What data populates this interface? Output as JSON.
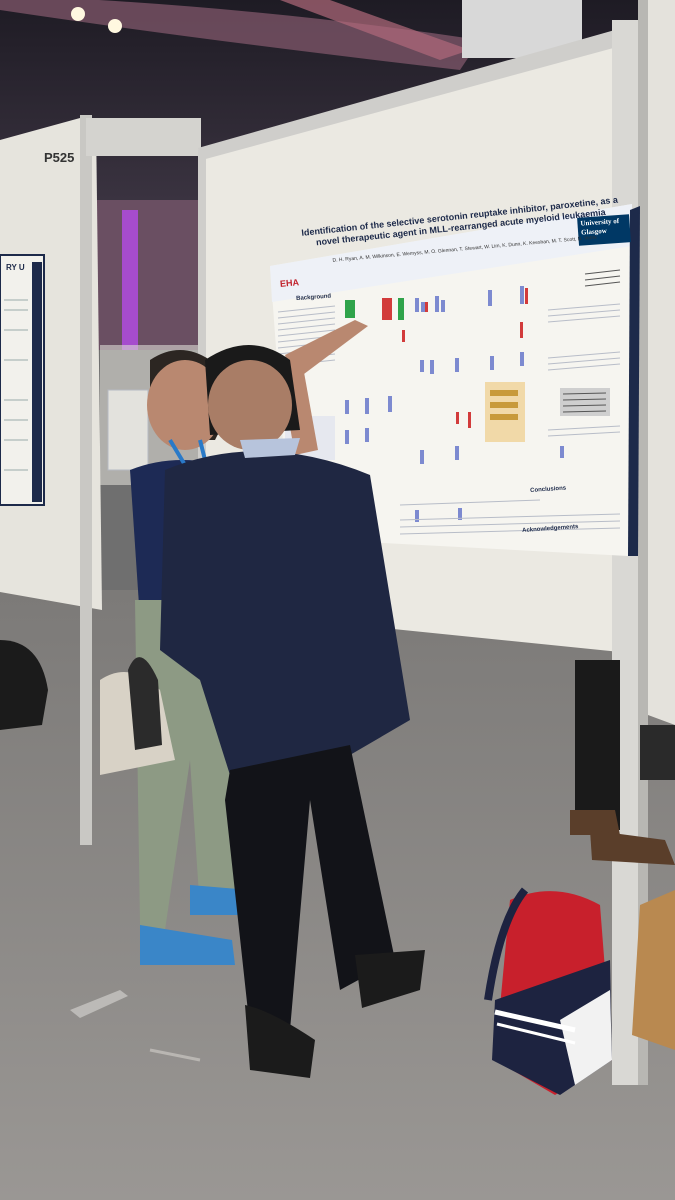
{
  "booth": {
    "number": "P525"
  },
  "poster": {
    "title": "Identification of the selective serotonin reuptake inhibitor, paroxetine, as a novel therapeutic agent in MLL-rearranged acute myeloid leukaemia",
    "authors": "D. H. Ryan, A. M. Wilkinson, E. Wemyss, M. O. Glennan, T. Stewart, W. Lim, K. Dunn, K. Keeshan, M. T. Scott, D. Vetrie",
    "institution_logo": "University of Glasgow",
    "conference_logo": "EHA",
    "sections": {
      "background": "Background",
      "conclusions": "Conclusions",
      "acknowledgements": "Acknowledgements"
    }
  },
  "left_poster": {
    "header": "RY U"
  },
  "colors": {
    "ceiling": "#2a2530",
    "floor": "#8a8784",
    "panel": "#ebe9e2",
    "poster_frame": "#1d2a4a",
    "jacket": "#1f2742",
    "backpack_red": "#c8202c"
  }
}
